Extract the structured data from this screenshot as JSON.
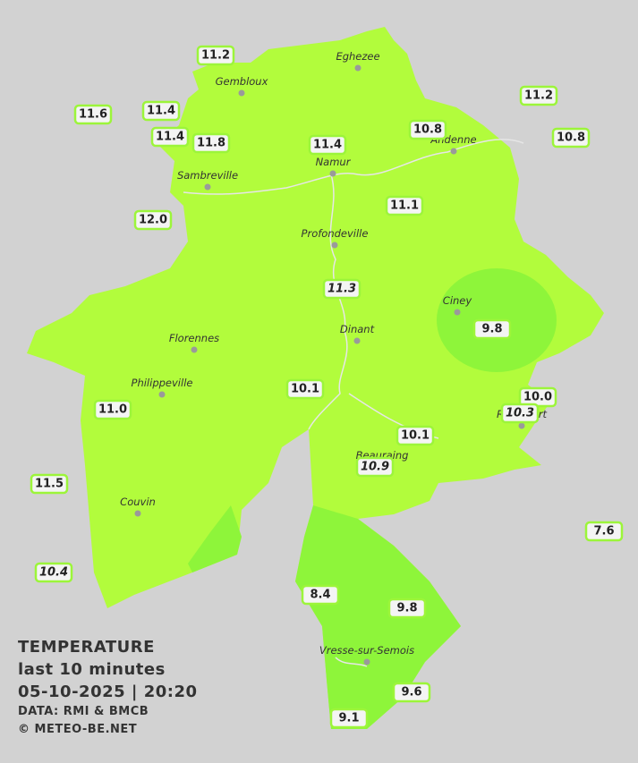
{
  "legend": {
    "title": "TEMPERATURE",
    "period": "last 10 minutes",
    "timestamp": "05-10-2025  |  20:20",
    "source": "DATA: RMI & BMCB",
    "copyright": "© METEO-BE.NET"
  },
  "towns": [
    "Eghezee",
    "Gembloux",
    "Andenne",
    "Namur",
    "Sambreville",
    "Profondeville",
    "Ciney",
    "Dinant",
    "Florennes",
    "Philippeville",
    "Rochefort",
    "Beauraing",
    "Couvin",
    "Vresse-sur-Semois"
  ],
  "stations": [
    {
      "label": "11.2"
    },
    {
      "label": "11.6"
    },
    {
      "label": "11.4"
    },
    {
      "label": "11.4"
    },
    {
      "label": "11.8"
    },
    {
      "label": "11.4"
    },
    {
      "label": "10.8"
    },
    {
      "label": "11.2"
    },
    {
      "label": "10.8"
    },
    {
      "label": "12.0"
    },
    {
      "label": "11.1"
    },
    {
      "label": "11.3",
      "italic": true
    },
    {
      "label": "9.8"
    },
    {
      "label": "10.1"
    },
    {
      "label": "11.0"
    },
    {
      "label": "10.0"
    },
    {
      "label": "10.3",
      "italic": true
    },
    {
      "label": "10.1"
    },
    {
      "label": "10.9",
      "italic": true
    },
    {
      "label": "11.5"
    },
    {
      "label": "7.6"
    },
    {
      "label": "10.4",
      "italic": true
    },
    {
      "label": "8.4"
    },
    {
      "label": "9.8"
    },
    {
      "label": "9.6"
    },
    {
      "label": "9.1"
    }
  ]
}
